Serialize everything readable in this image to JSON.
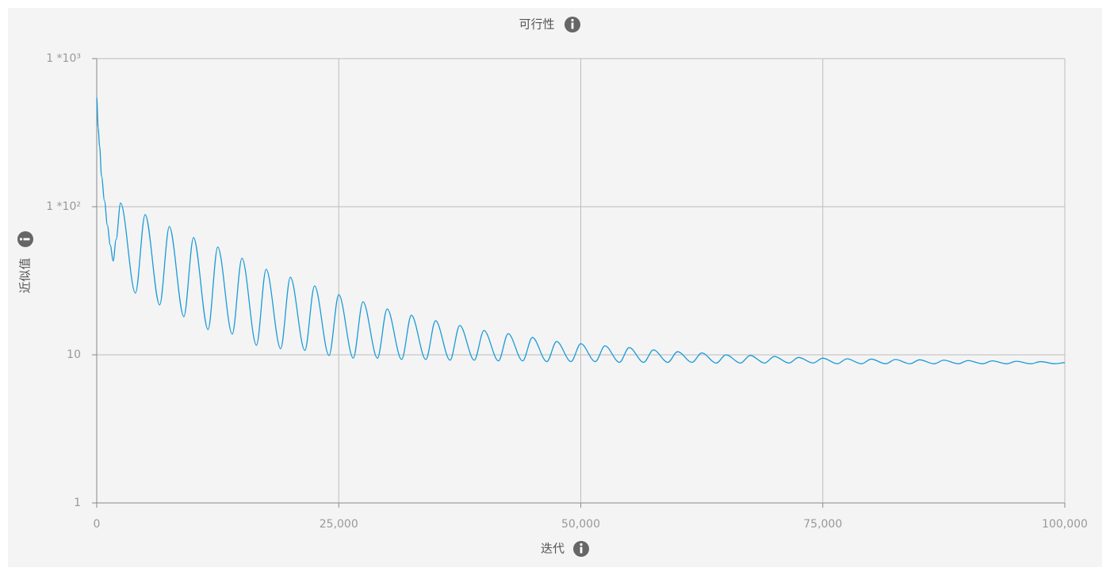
{
  "chart_data": {
    "type": "line",
    "title": "可行性",
    "xlabel": "迭代",
    "ylabel": "近似值",
    "yscale": "log",
    "grid": true,
    "xlim": [
      0,
      100000
    ],
    "ylim": [
      1,
      1000
    ],
    "xticks": [
      0,
      {
        "value": 25000,
        "label": "25,000"
      },
      {
        "value": 50000,
        "label": "50,000"
      },
      {
        "value": 75000,
        "label": "75,000"
      },
      {
        "value": 100000,
        "label": "100,000"
      }
    ],
    "yticks": [
      1,
      10,
      {
        "value": 100,
        "label": "1 *10²"
      },
      {
        "value": 1000,
        "label": "1 *10³"
      }
    ],
    "x": [
      0,
      150,
      300,
      500,
      800,
      1100,
      1400,
      1700,
      2000,
      2460,
      4000,
      5000,
      6500,
      7500,
      9000,
      10000,
      11500,
      12500,
      14000,
      15000,
      16500,
      17500,
      19000,
      20000,
      21500,
      22500,
      24000,
      25000,
      26500,
      27500,
      29000,
      30000,
      31500,
      32500,
      34000,
      35000,
      36500,
      37500,
      39000,
      40000,
      41500,
      42500,
      44000,
      45000,
      46500,
      47500,
      49000,
      50000,
      51500,
      52500,
      54000,
      55000,
      56500,
      57500,
      59000,
      60000,
      61500,
      62500,
      64000,
      65000,
      66500,
      67500,
      69000,
      70000,
      71500,
      72500,
      74000,
      75000,
      76500,
      77500,
      79000,
      80000,
      81500,
      82500,
      84000,
      85000,
      86500,
      87500,
      89000,
      90000,
      91500,
      92500,
      94000,
      95000,
      96500,
      97500,
      99000,
      100000
    ],
    "series": [
      {
        "name": "近似值",
        "color": "#1a9bd7",
        "values": [
          550,
          340,
          255,
          160,
          110,
          75,
          55,
          43,
          60,
          106,
          26.1,
          88.5,
          21.7,
          73.5,
          18.1,
          61.8,
          14.8,
          53.4,
          13.8,
          44.9,
          11.6,
          37.8,
          11.0,
          33.4,
          10.7,
          29.2,
          9.9,
          25.5,
          9.5,
          22.8,
          9.5,
          20.4,
          9.3,
          18.5,
          9.3,
          17.0,
          9.2,
          15.8,
          9.2,
          14.6,
          9.1,
          13.9,
          9.1,
          13.1,
          9.0,
          12.3,
          9.0,
          11.9,
          9.0,
          11.5,
          8.9,
          11.2,
          8.9,
          10.8,
          8.9,
          10.5,
          8.9,
          10.3,
          8.8,
          10.0,
          8.8,
          9.9,
          8.8,
          9.75,
          8.8,
          9.6,
          8.8,
          9.5,
          8.7,
          9.4,
          8.7,
          9.35,
          8.7,
          9.3,
          8.7,
          9.25,
          8.7,
          9.2,
          8.7,
          9.15,
          8.7,
          9.1,
          8.7,
          9.05,
          8.7,
          9.0,
          8.7,
          8.85
        ]
      }
    ]
  }
}
